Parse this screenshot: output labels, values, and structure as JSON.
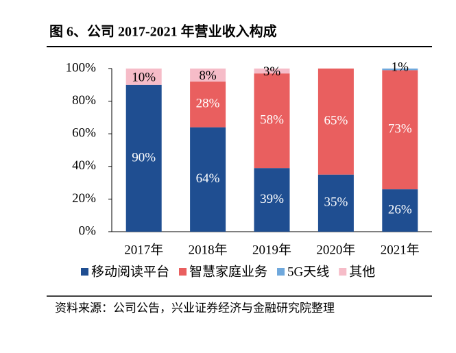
{
  "chart_data": {
    "type": "stacked_bar",
    "title": "图 6、公司 2017-2021 年营业收入构成",
    "source": "资料来源：公司公告，兴业证券经济与金融研究院整理",
    "categories": [
      "2017年",
      "2018年",
      "2019年",
      "2020年",
      "2021年"
    ],
    "series": [
      {
        "name": "移动阅读平台",
        "color": "#1f4e91",
        "values": [
          90,
          64,
          39,
          35,
          26
        ],
        "value_labels": [
          "90%",
          "64%",
          "39%",
          "35%",
          "26%"
        ]
      },
      {
        "name": "智慧家庭业务",
        "color": "#e95f5f",
        "values": [
          0,
          28,
          58,
          65,
          73
        ],
        "value_labels": [
          null,
          "28%",
          "58%",
          "65%",
          "73%"
        ]
      },
      {
        "name": "5G天线",
        "color": "#6fa8dc",
        "values": [
          0,
          0,
          0,
          0,
          1
        ],
        "value_labels": [
          null,
          null,
          null,
          null,
          "1%"
        ]
      },
      {
        "name": "其他",
        "color": "#f6bcc8",
        "values": [
          10,
          8,
          3,
          0,
          0
        ],
        "value_labels": [
          "10%",
          "8%",
          "3%",
          null,
          null
        ]
      }
    ],
    "ylim": [
      0,
      100
    ],
    "yticks": [
      {
        "value": 0,
        "label": "0%"
      },
      {
        "value": 20,
        "label": "20%"
      },
      {
        "value": 40,
        "label": "40%"
      },
      {
        "value": 60,
        "label": "60%"
      },
      {
        "value": 80,
        "label": "80%"
      },
      {
        "value": 100,
        "label": "100%"
      }
    ]
  }
}
